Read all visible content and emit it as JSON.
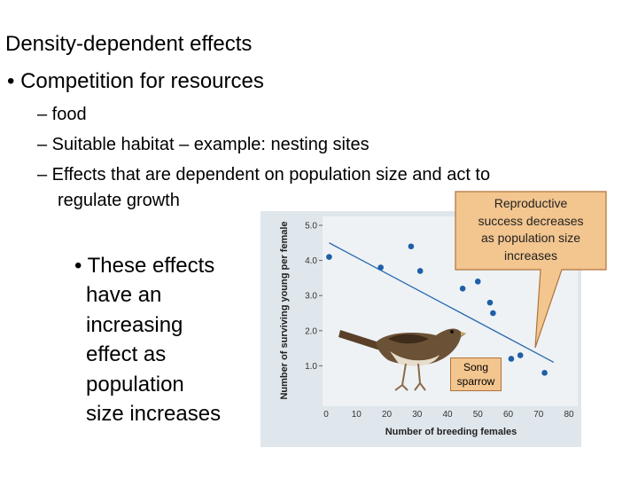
{
  "slide": {
    "title": "Density-dependent effects",
    "bullet_main": "• Competition for resources",
    "subbullets": [
      "– food",
      "– Suitable habitat – example: nesting sites",
      "– Effects that are dependent on population size and act to",
      "regulate growth"
    ],
    "side_bullet_lines": [
      "• These effects",
      "have an",
      "increasing",
      "effect as",
      "population",
      "size increases"
    ],
    "callout_lines": [
      "Reproductive",
      "success decreases",
      "as population size",
      "increases"
    ],
    "label_box_lines": [
      "Song",
      "sparrow"
    ]
  },
  "colors": {
    "chart_panel": "#dfe6ec",
    "chart_bg": "#eef2f5",
    "points": "#1f5fa8",
    "trend_line": "#2e6db0",
    "callout_fill": "#f3c58f",
    "callout_stroke": "#b0733a",
    "sparrow_body": "#6b5135"
  },
  "icons": {
    "bird": "song-sparrow-illustration"
  },
  "chart_data": {
    "type": "scatter",
    "xlabel": "Number of breeding females",
    "ylabel": "Number of surviving young per female",
    "xlim": [
      0,
      80
    ],
    "ylim": [
      0,
      5
    ],
    "x_ticks": [
      0,
      10,
      20,
      30,
      40,
      50,
      60,
      70,
      80
    ],
    "y_ticks": [
      1.0,
      2.0,
      3.0,
      4.0,
      5.0
    ],
    "y_tick_labels": [
      "1.0",
      "2.0",
      "3.0",
      "4.0",
      "5.0"
    ],
    "points": [
      {
        "x": 1,
        "y": 4.1
      },
      {
        "x": 18,
        "y": 3.8
      },
      {
        "x": 28,
        "y": 4.4
      },
      {
        "x": 31,
        "y": 3.7
      },
      {
        "x": 45,
        "y": 3.2
      },
      {
        "x": 50,
        "y": 3.4
      },
      {
        "x": 54,
        "y": 2.8
      },
      {
        "x": 55,
        "y": 2.5
      },
      {
        "x": 61,
        "y": 1.2
      },
      {
        "x": 64,
        "y": 1.3
      },
      {
        "x": 72,
        "y": 0.8
      }
    ],
    "trend_line": [
      {
        "x": 1,
        "y": 4.5
      },
      {
        "x": 75,
        "y": 1.1
      }
    ],
    "grid": false
  }
}
